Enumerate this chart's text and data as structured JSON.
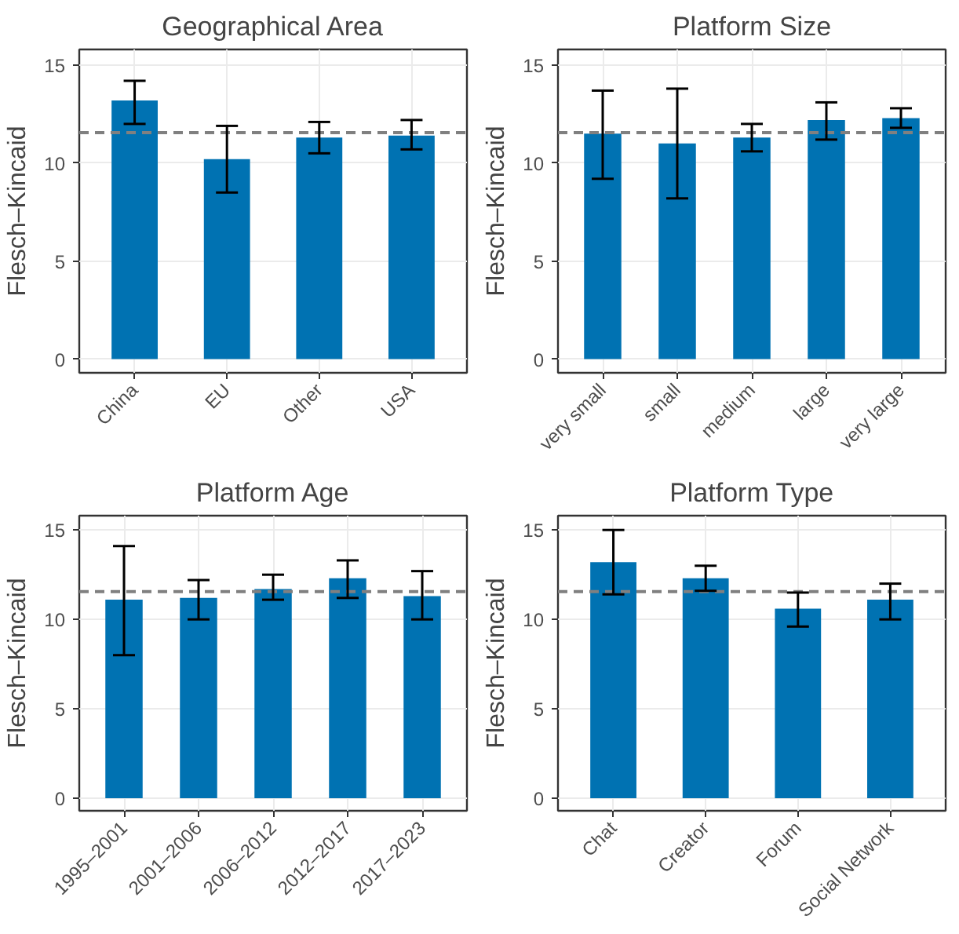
{
  "chart_data": [
    {
      "type": "bar",
      "title": "Geographical Area",
      "ylabel": "Flesch–Kincaid",
      "categories": [
        "China",
        "EU",
        "Other",
        "USA"
      ],
      "values": [
        13.2,
        10.2,
        11.3,
        11.4
      ],
      "errors": [
        [
          12.0,
          14.2
        ],
        [
          8.5,
          11.9
        ],
        [
          10.5,
          12.1
        ],
        [
          10.7,
          12.2
        ]
      ],
      "color": "#0072b2",
      "ylim": [
        -0.7,
        15.8
      ],
      "yticks": [
        0,
        5,
        10,
        15
      ],
      "grid": true,
      "ref_lines": [
        {
          "axis": "y",
          "value": 11.55,
          "label": null,
          "color": "#808080",
          "line_style": "dashed"
        }
      ]
    },
    {
      "type": "bar",
      "title": "Platform Size",
      "ylabel": "Flesch–Kincaid",
      "categories": [
        "very small",
        "small",
        "medium",
        "large",
        "very large"
      ],
      "values": [
        11.5,
        11.0,
        11.3,
        12.2,
        12.3
      ],
      "errors": [
        [
          9.2,
          13.7
        ],
        [
          8.2,
          13.8
        ],
        [
          10.6,
          12.0
        ],
        [
          11.2,
          13.1
        ],
        [
          11.8,
          12.8
        ]
      ],
      "color": "#0072b2",
      "ylim": [
        -0.7,
        15.8
      ],
      "yticks": [
        0,
        5,
        10,
        15
      ],
      "grid": true,
      "ref_lines": [
        {
          "axis": "y",
          "value": 11.55,
          "label": null,
          "color": "#808080",
          "line_style": "dashed"
        }
      ]
    },
    {
      "type": "bar",
      "title": "Platform Age",
      "ylabel": "Flesch–Kincaid",
      "categories": [
        "1995–2001",
        "2001–2006",
        "2006–2012",
        "2012–2017",
        "2017–2023"
      ],
      "values": [
        11.1,
        11.2,
        11.7,
        12.3,
        11.3
      ],
      "errors": [
        [
          8.0,
          14.1
        ],
        [
          10.0,
          12.2
        ],
        [
          11.1,
          12.5
        ],
        [
          11.2,
          13.3
        ],
        [
          10.0,
          12.7
        ]
      ],
      "color": "#0072b2",
      "ylim": [
        -0.7,
        15.8
      ],
      "yticks": [
        0,
        5,
        10,
        15
      ],
      "grid": true,
      "ref_lines": [
        {
          "axis": "y",
          "value": 11.55,
          "label": null,
          "color": "#808080",
          "line_style": "dashed"
        }
      ]
    },
    {
      "type": "bar",
      "title": "Platform Type",
      "ylabel": "Flesch–Kincaid",
      "categories": [
        "Chat",
        "Creator",
        "Forum",
        "Social Network"
      ],
      "values": [
        13.2,
        12.3,
        10.6,
        11.1
      ],
      "errors": [
        [
          11.4,
          15.0
        ],
        [
          11.6,
          13.0
        ],
        [
          9.6,
          11.5
        ],
        [
          10.0,
          12.0
        ]
      ],
      "color": "#0072b2",
      "ylim": [
        -0.7,
        15.8
      ],
      "yticks": [
        0,
        5,
        10,
        15
      ],
      "grid": true,
      "ref_lines": [
        {
          "axis": "y",
          "value": 11.55,
          "label": null,
          "color": "#808080",
          "line_style": "dashed"
        }
      ]
    }
  ]
}
